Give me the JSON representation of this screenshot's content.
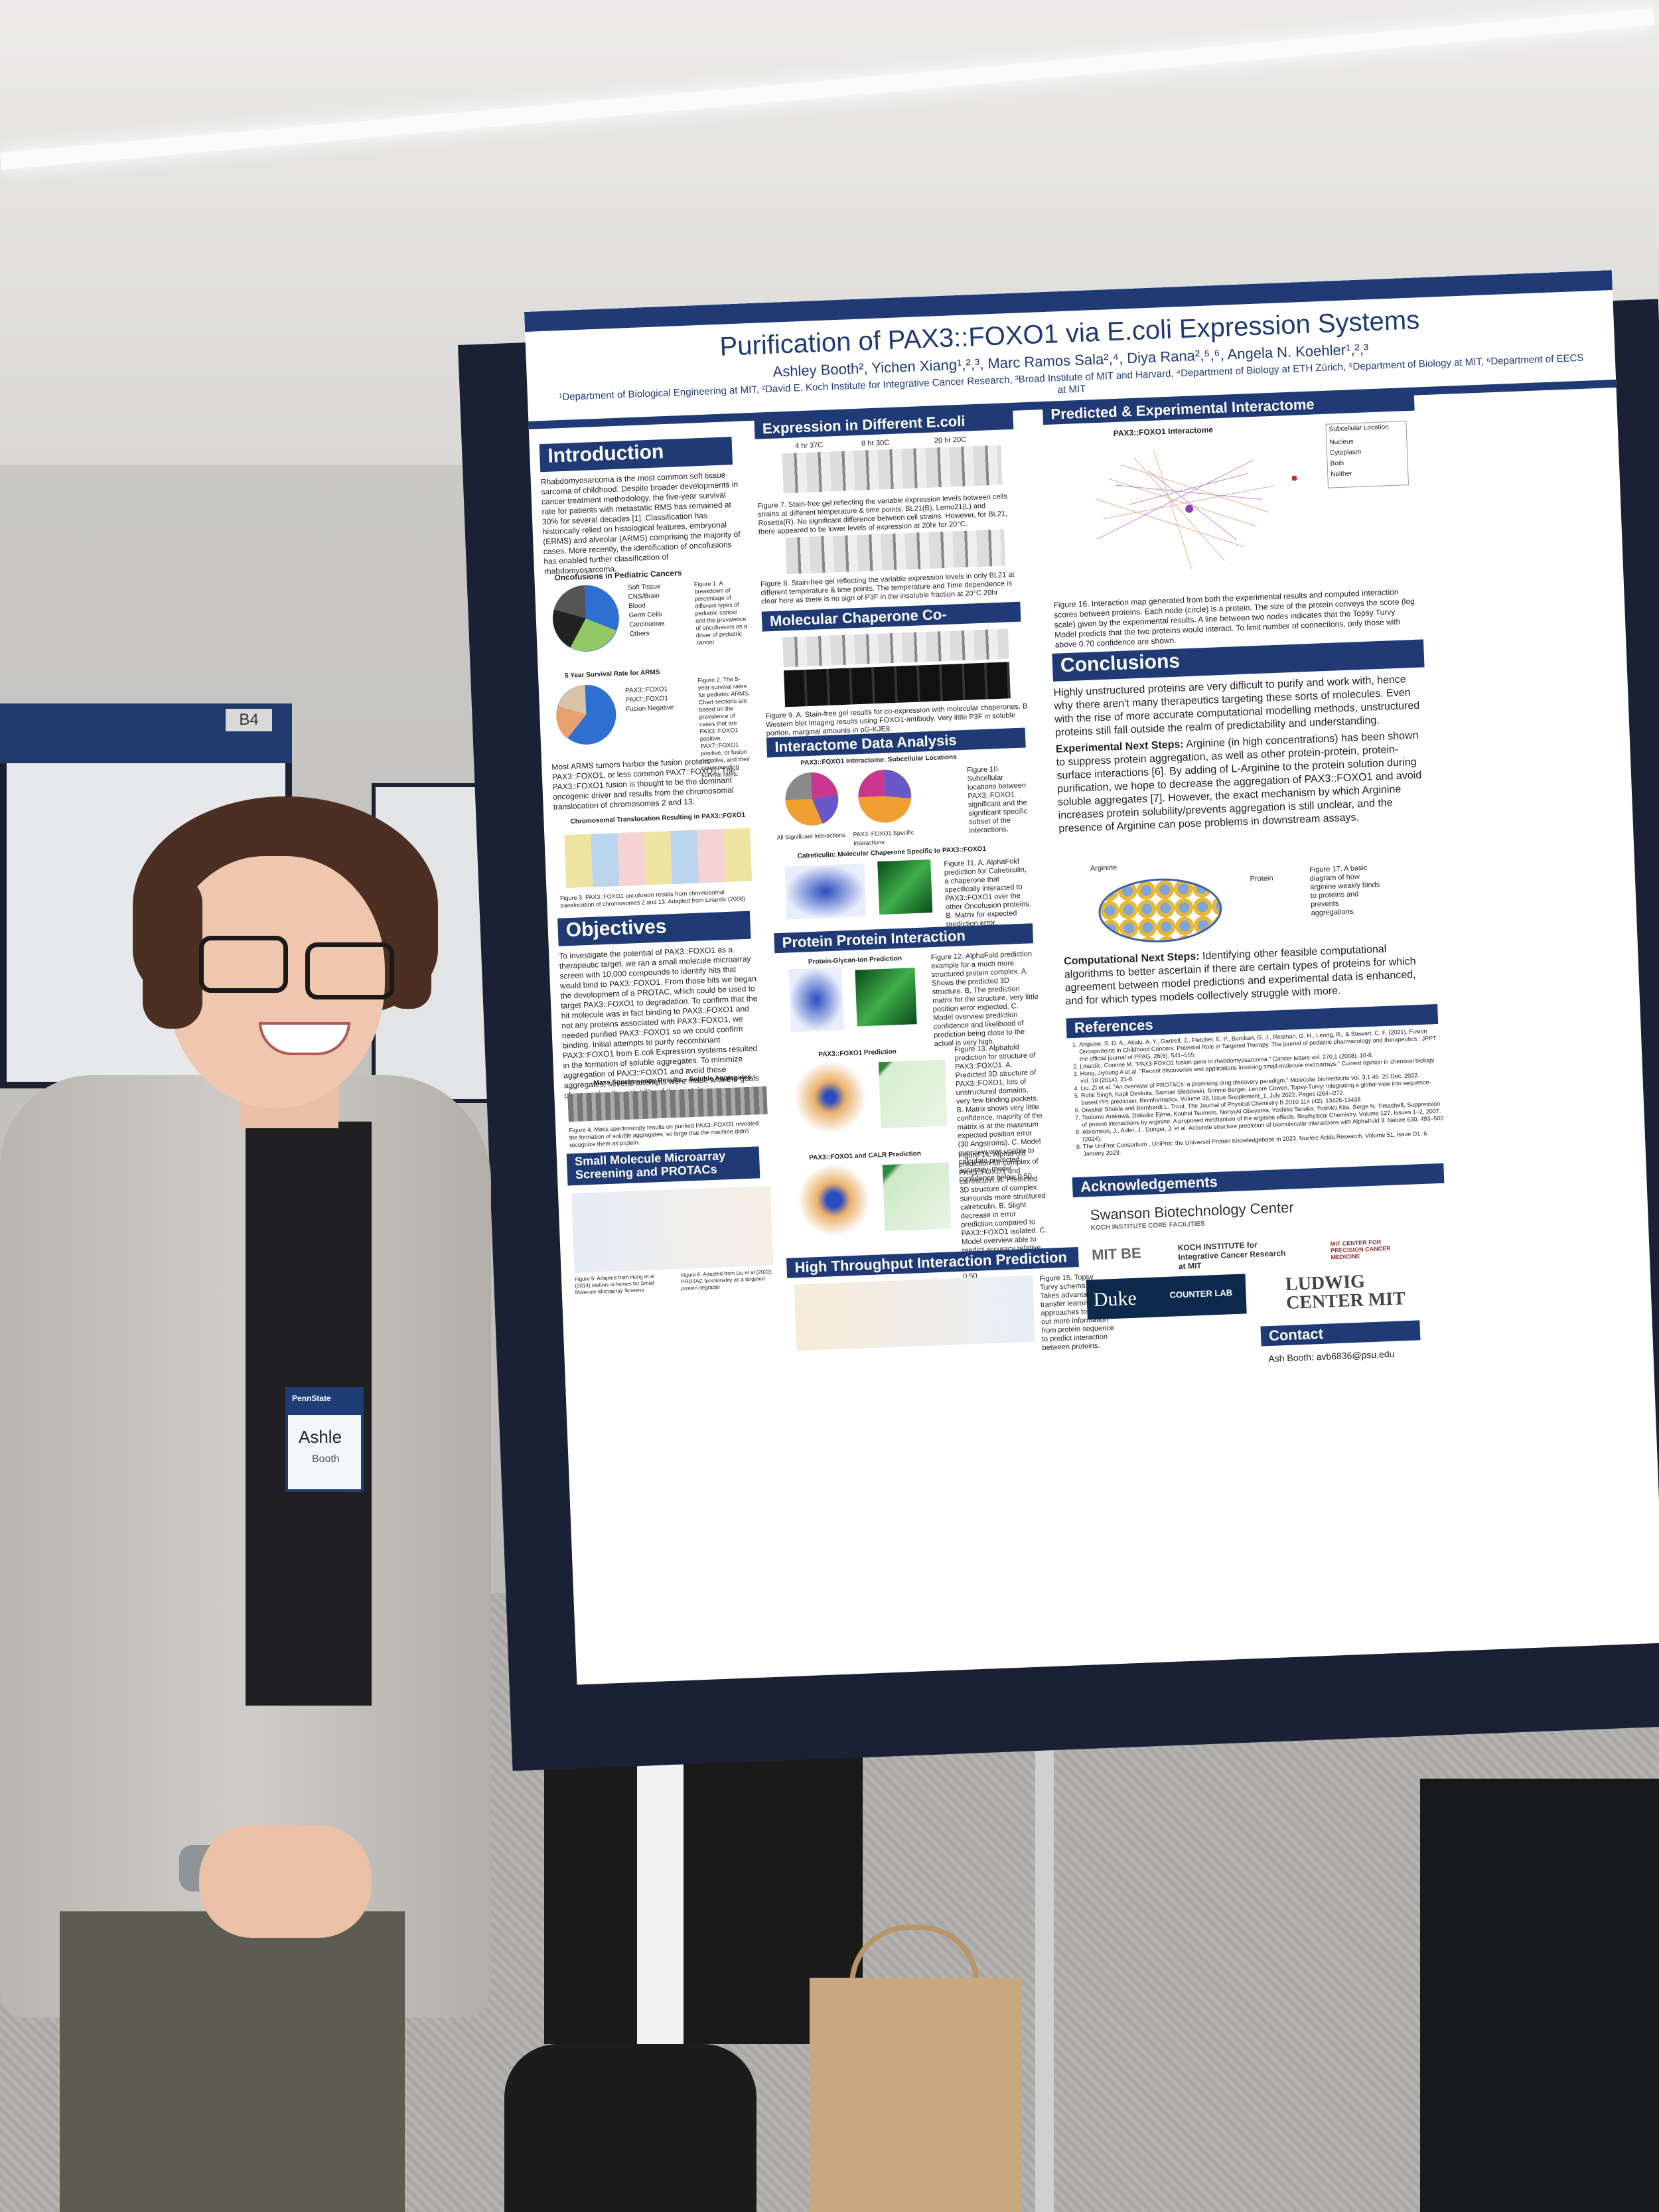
{
  "poster": {
    "title": "Purification of PAX3::FOXO1 via E.coli Expression Systems",
    "authors": "Ashley Booth², Yichen Xiang¹,²,³, Marc Ramos Sala²,⁴, Diya Rana²,⁵,⁶, Angela N. Koehler¹,²,³",
    "affiliations": "¹Department of Biological Engineering at MIT, ²David E. Koch Institute for Integrative Cancer Research, ³Broad Institute of MIT and Harvard, ⁴Department of Biology at ETH Zürich, ⁵Department of Biology at MIT, ⁶Department of EECS at MIT",
    "sections": {
      "introduction": {
        "heading": "Introduction",
        "text": "Rhabdomyosarcoma is the most common soft tissue sarcoma of childhood. Despite broader developments in cancer treatment methodology, the five-year survival rate for patients with metastatic RMS has remained at 30% for several decades [1]. Classification has historically relied on histological features, embryonal (ERMS) and alveolar (ARMS) comprising the majority of cases. More recently, the identification of oncofusions has enabled further classification of rhabdomyosarcoma.",
        "chart1_title": "Oncofusions in Pediatric Cancers",
        "chart1_legend": [
          "Soft Tissue",
          "CNS/Brain",
          "Blood",
          "Germ Cells",
          "Carcinomas",
          "Others"
        ],
        "fig1_caption": "Figure 1. A breakdown of percentage of different types of pediatric cancer and the prevalence of oncofusions as a driver of pediatric cancer",
        "chart2_title": "5 Year Survival Rate for ARMS",
        "chart2_legend": [
          "PAX3::FOXO1",
          "PAX7::FOXO1",
          "Fusion Negative"
        ],
        "fig2_caption": "Figure 2. The 5-year survival rates for pediatric ARMS. Chart sections are based on the prevalence of cases that are PAX3::FOXO1 positive, PAX7::FOXO1 positive, or fusion negative, and their corresponding survival rates.",
        "text2": "Most ARMS tumors harbor the fusion protein PAX3::FOXO1, or less common PAX7::FOXO1. The PAX3::FOXO1 fusion is thought to be the dominant oncogenic driver and results from the chromosomal translocation of chromosomes 2 and 13.",
        "fig3_title": "Chromosomal Translocation Resulting in PAX3::FOXO1",
        "fig3_caption": "Figure 3. PAX3::FOXO1 oncofusion results from chromosomal translocation of chromosomes 2 and 13. Adapted from Linardic (2008)"
      },
      "objectives": {
        "heading": "Objectives",
        "text": "To investigate the potential of PAX3::FOXO1 as a therapeutic target, we ran a small molecule microarray screen with 10,000 compounds to identify hits that would bind to PAX3::FOXO1. From those hits we began the development of a PROTAC, which could be used to target PAX3::FOXO1 to degradation. To confirm that the hit molecule was in fact binding to PAX3::FOXO1 and not any proteins associated with PAX3::FOXO1, we needed purified PAX3::FOXO1 so we could confirm binding. Initial attempts to purify recombinant PAX3::FOXO1 from E.coli Expression systems resulted in the formation of soluble aggregates. To minimize aggregation of PAX3::FOXO1 and avoid these aggregates, several attempts were made with the goals of increasing the solubility of the protein.",
        "fig4_title": "Mass Spectroscopy Results – Soluble Aggregates",
        "fig4_caption": "Figure 4. Mass spectroscopy results on purified PAX3::FOXO1 revealed the formation of soluble aggregates, so large that the machine didn't recognize them as protein."
      },
      "small_molecule": {
        "heading": "Small Molecule Microarray Screening and PROTACs",
        "fig5_caption": "Figure 5. Adapted from Hong et al (2014) various schemes for Small Molecule Microarray Screens",
        "fig6_caption": "Figure 6. Adapted from Liu et al (2022) PROTAC functionality as a targeted protein degrader"
      },
      "expression": {
        "heading": "Expression in Different E.coli Strains",
        "gel_labels": [
          "4 hr 37C",
          "8 hr 30C",
          "20 hr 20C"
        ],
        "fig7_caption": "Figure 7. Stain-free gel reflecting the variable expression levels between cells strains at different temperature & time points. BL21(B), Lemo21(L) and Rosetta(R). No significant difference between cell strains. However, for BL21, there appeared to be lower levels of expression at 20hr for 20°C.",
        "fig8_caption": "Figure 8. Stain-free gel reflecting the variable expression levels in only BL21 at different temperature & time points. The temperature and Time dependence is clear here as there is no sign of P3F in the insoluble fraction at 20°C 20hr"
      },
      "chaperone": {
        "heading": "Molecular Chaperone Co-Expression",
        "fig9_caption": "Figure 9. A. Stain-free gel results for co-expression with molecular chaperones. B. Western blot imaging results using FOXO1-antibody. Very little P3F in soluble portion, marginal amounts in pG-KJE8."
      },
      "interactome_data": {
        "heading": "Interactome Data Analysis",
        "chart_title": "PAX3::FOXO1 Interactome: Subcellular Locations",
        "pie1_label": "All Significant Interactions",
        "pie2_label": "PAX3::FOXO1 Specific Interactions",
        "fig10_caption": "Figure 10. Subcellular locations between PAX3::FOXO1 significant and the significant specific subset of the interactions.",
        "fig11_title": "Calreticulin: Molecular Chaperone Specific to PAX3::FOXO1",
        "fig11_caption": "Figure 11. A. AlphaFold prediction for Calreticulin, a chaperone that specifically interacted to PAX3::FOXO1 over the other Oncofusion proteins. B. Matrix for expected prediction error."
      },
      "ppi": {
        "heading": "Protein Protein Interaction Prediction",
        "fig12_title": "Protein-Glycan-Ion Prediction",
        "fig12_caption": "Figure 12. AlphaFold prediction example for a much more structured protein complex. A. Shows the predicted 3D structure. B. The prediction matrix for the structure, very little position error expected. C. Model overview prediction confidence and likelihood of prediction being close to the actual is very high.",
        "fig13_title": "PAX3::FOXO1 Prediction",
        "fig13_caption": "Figure 13. Alphafold prediction for structure of PAX3::FOXO1. A. Predicted 3D structure of PAX3::FOXO1, lots of unstructured domains, very few binding pockets. B. Matrix shows very little confidence, majority of the matrix is at the maximum expected position error (30 Angstroms). C. Model overview was unable to calculate predicted accuracy, model confidence below 0.50.",
        "fig14_title": "PAX3::FOXO1 and CALR Prediction",
        "fig14_caption": "Figure 14. AlphaFold prediction for complex of PAX3::FOXO1 and calreticulin. A. Predicted 3D structure of complex surrounds more structured calreticulin. B. Slight decrease in error prediction compared to PAX3::FOXO1 isolated. C. Model overview able to predict accuracy relative to real structure, model confidence still below 0.50."
      },
      "high_throughput": {
        "heading": "High Throughput Interaction Prediction",
        "fig15_caption": "Figure 15. Topsy Turvy schema model. Takes advantage of transfer learning approaches to take out more information from protein sequence to predict interaction between proteins."
      },
      "interactome": {
        "heading": "Predicted & Experimental Interactome",
        "chart_title": "PAX3::FOXO1 Interactome",
        "legend_title": "Subcellular Location",
        "legend": [
          "Nucleus",
          "Cytoplasm",
          "Both",
          "Neither"
        ],
        "fig16_caption": "Figure 16. Interaction map generated from both the experimental results and computed interaction scores between proteins. Each node (circle) is a protein. The size of the protein conveys the score (log scale) given by the experimental results. A line between two nodes indicates that the Topsy Turvy Model predicts that the two proteins would interact. To limit number of connections, only those with above 0.70 confidence are shown."
      },
      "conclusions": {
        "heading": "Conclusions",
        "text": "Highly unstructured proteins are very difficult to purify and work with, hence why there aren't many therapeutics targeting these sorts of molecules. Even with the rise of more accurate computational modelling methods, unstructured proteins still fall outside the realm of predictability and understanding.",
        "next_label": "Experimental Next Steps:",
        "next_text": "Arginine (in high concentrations) has been shown to suppress protein aggregation, as well as other protein-protein, protein-surface interactions [6]. By adding of L-Arginine to the protein solution during purification, we hope to decrease the aggregation of PAX3::FOXO1 and avoid soluble aggregates [7]. However, the exact mechanism by which Arginine increases protein solubility/prevents aggregation is still unclear, and the presence of Arginine can pose problems in downstream assays.",
        "arginine_label": "Arginine",
        "protein_label": "Protein",
        "fig17_caption": "Figure 17. A basic diagram of how arginine weakly binds to proteins and prevents aggregations.",
        "comp_label": "Computational Next Steps:",
        "comp_text": "Identifying other feasible computational algorithms to better ascertain if there are certain types of proteins for which agreement between model predictions and experimental data is enhanced, and for which types models collectively struggle with more."
      },
      "references": {
        "heading": "References",
        "items": [
          "Angione, S. D. A., Akalu, A. Y., Gartrell, J., Fletcher, E. P., Burckart, G. J., Reaman, G. H., Leong, R., & Stewart, C. F. (2021). Fusion Oncoproteins in Childhood Cancers: Potential Role in Targeted Therapy. The journal of pediatric pharmacology and therapeutics : JPPT : the official journal of PPAG, 26(6), 541–555.",
          "Linardic, Corinne M. \"PAX3-FOXO1 fusion gene in rhabdomyosarcoma.\" Cancer letters vol. 270,1 (2008): 10-8.",
          "Hong, Jiyoung A et al. \"Recent discoveries and applications involving small-molecule microarrays.\" Current opinion in chemical biology vol. 18 (2014): 21-8.",
          "Liu, Zi et al. \"An overview of PROTACs: a promising drug discovery paradigm.\" Molecular biomedicine vol. 3,1 46. 20 Dec. 2022.",
          "Rohit Singh, Kapil Devkota, Samuel Sledzieski, Bonnie Berger, Lenore Cowen, Topsy-Turvy: integrating a global view into sequence-based PPI prediction, Bioinformatics, Volume 38, Issue Supplement_1, July 2022, Pages i264–i272.",
          "Diwakar Shukla and Bernhardt L. Trout. The Journal of Physical Chemistry B 2010 114 (42), 13426-13438",
          "Tsutomu Arakawa, Daisuke Ejima, Kouhei Tsumoto, Noriyuki Obeyama, Yoshiko Tanaka, Yoshiko Kita, Serge N. Timasheff, Suppression of protein interactions by arginine: A proposed mechanism of the arginine effects, Biophysical Chemistry, Volume 127, Issues 1–2, 2007.",
          "Abramson, J., Adler, J., Dunger, J. et al. Accurate structure prediction of biomolecular interactions with AlphaFold 3. Nature 630, 493–500 (2024).",
          "The UniProt Consortium , UniProt: the Universal Protein Knowledgebase in 2023, Nucleic Acids Research, Volume 51, Issue D1, 6 January 2023."
        ]
      },
      "acknowledgements": {
        "heading": "Acknowledgements",
        "logos": [
          "Swanson Biotechnology Center",
          "KOCH INSTITUTE CORE FACILITIES",
          "MIT BE",
          "KOCH INSTITUTE for Integrative Cancer Research at MIT",
          "MIT CENTER FOR PRECISION CANCER MEDICINE",
          "Duke",
          "COUNTER LAB",
          "LUDWIG CENTER MIT"
        ]
      },
      "contact": {
        "heading": "Contact",
        "text": "Ash Booth: avb6836@psu.edu"
      }
    }
  },
  "scene": {
    "booth_tag": "B4",
    "badge_name": "Ashle",
    "badge_sub": "Booth",
    "badge_org": "PennState"
  }
}
